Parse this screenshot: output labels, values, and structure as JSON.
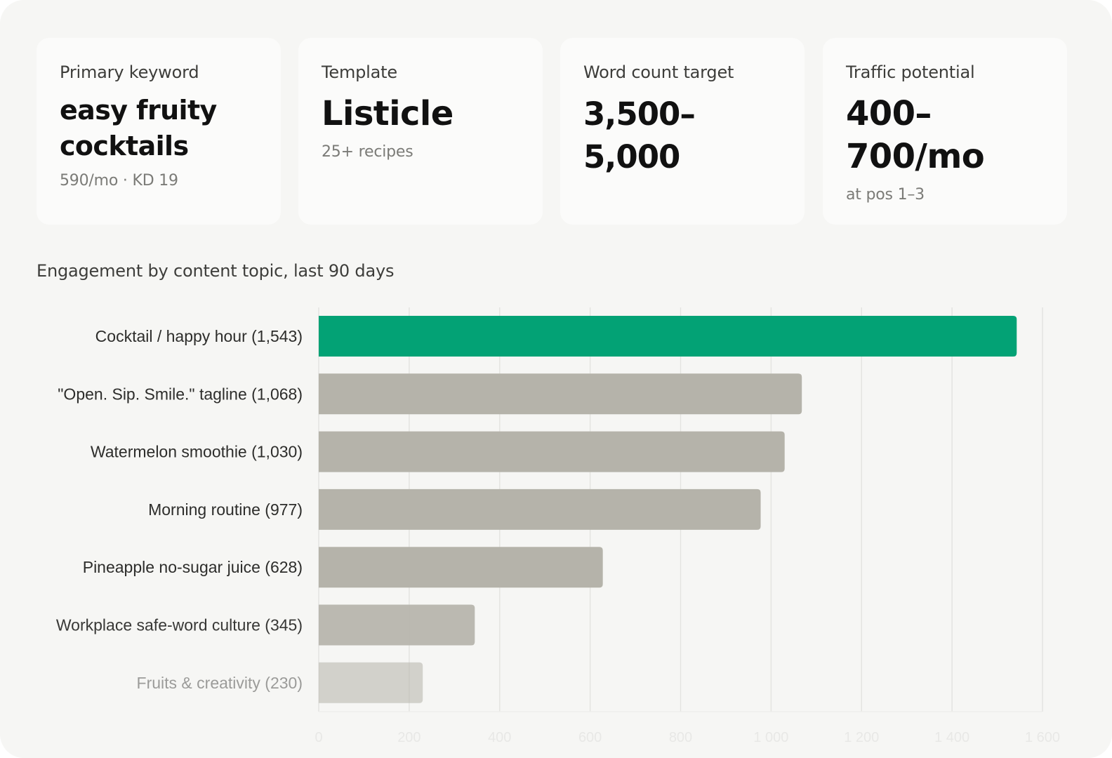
{
  "cards": [
    {
      "label": "Primary keyword",
      "value_lines": [
        "easy fruity",
        "cocktails"
      ],
      "sub": "590/mo · KD 19"
    },
    {
      "label": "Template",
      "value_lines": [
        "Listicle"
      ],
      "sub": "25+ recipes"
    },
    {
      "label": "Word count target",
      "value_lines": [
        "3,500–5,000"
      ],
      "sub": ""
    },
    {
      "label": "Traffic potential",
      "value_lines": [
        "400–",
        "700/mo"
      ],
      "sub": "at pos 1–3"
    }
  ],
  "chart_data": {
    "type": "bar",
    "orientation": "horizontal",
    "title": "Engagement by content topic, last 90 days",
    "categories": [
      "Cocktail / happy hour (1,543)",
      "\"Open. Sip. Smile.\" tagline (1,068)",
      "Watermelon smoothie (1,030)",
      "Morning routine (977)",
      "Pineapple no-sugar juice (628)",
      "Workplace safe-word culture (345)",
      "Fruits & creativity (230)"
    ],
    "values": [
      1543,
      1068,
      1030,
      977,
      628,
      345,
      230
    ],
    "xlim": [
      0,
      1600
    ],
    "xticks": [
      0,
      200,
      400,
      600,
      800,
      1000,
      1200,
      1400,
      1600
    ],
    "xtick_labels": [
      "0",
      "200",
      "400",
      "600",
      "800",
      "1 000",
      "1 200",
      "1 400",
      "1 600"
    ],
    "grid": true,
    "legend": "none",
    "colors": {
      "highlight": "#03a275",
      "bar": "#b5b3aa",
      "gridline": "#e4e4e1",
      "label": "#2d2d2b"
    },
    "faded_tail": true
  }
}
